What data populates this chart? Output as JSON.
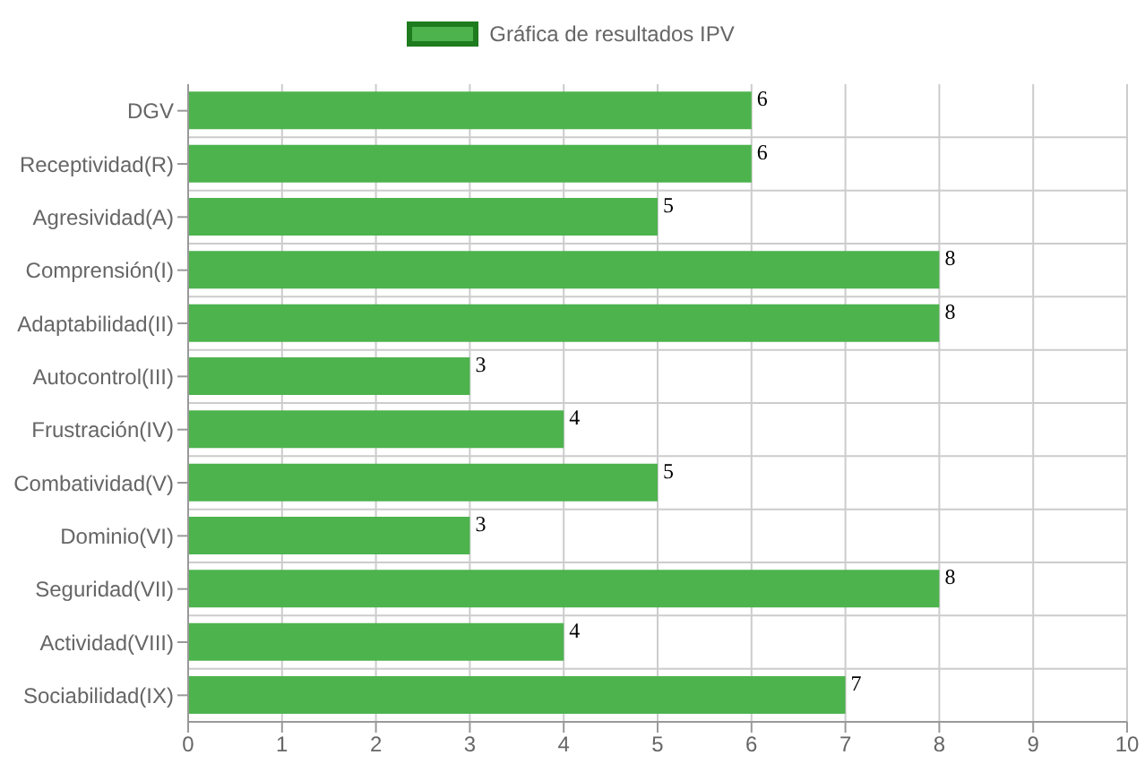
{
  "chart_data": {
    "type": "bar",
    "orientation": "horizontal",
    "categories": [
      "DGV",
      "Receptividad(R)",
      "Agresividad(A)",
      "Comprensión(I)",
      "Adaptabilidad(II)",
      "Autocontrol(III)",
      "Frustración(IV)",
      "Combatividad(V)",
      "Dominio(VI)",
      "Seguridad(VII)",
      "Actividad(VIII)",
      "Sociabilidad(IX)"
    ],
    "series": [
      {
        "name": "Gráfica de resultados IPV",
        "color": "#4db34d",
        "values": [
          6,
          6,
          5,
          8,
          8,
          3,
          4,
          5,
          3,
          8,
          4,
          7
        ]
      }
    ],
    "xlim": [
      0,
      10
    ],
    "xticks": [
      0,
      1,
      2,
      3,
      4,
      5,
      6,
      7,
      8,
      9,
      10
    ],
    "grid": true,
    "legend": "top",
    "data_labels": true
  }
}
